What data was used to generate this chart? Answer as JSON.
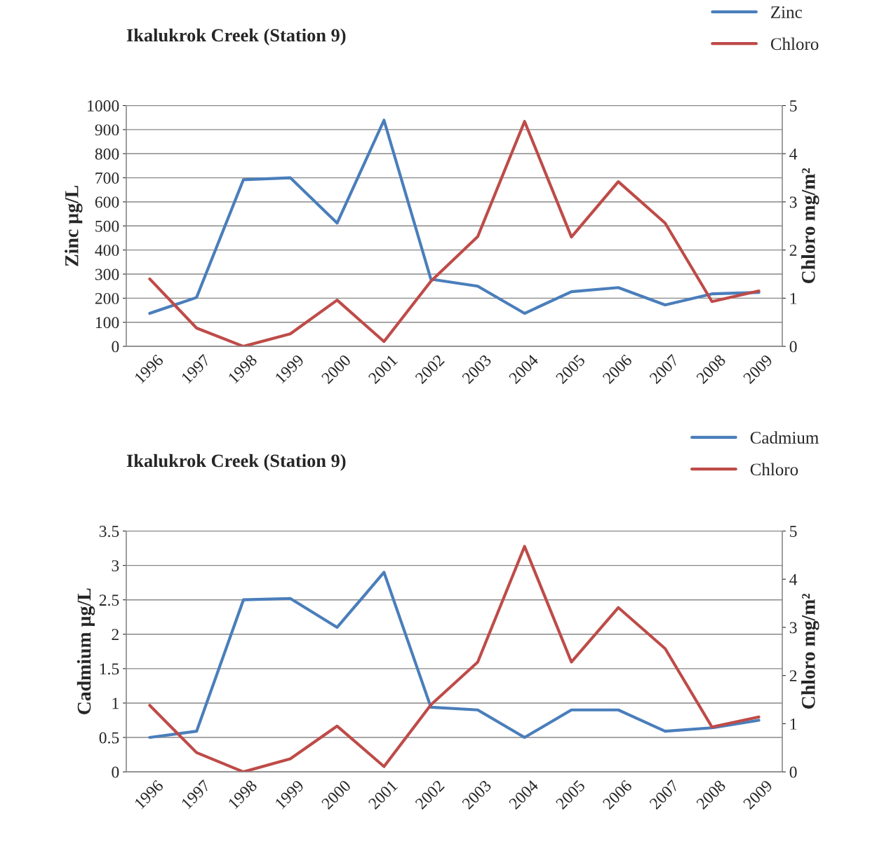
{
  "chart_data": [
    {
      "type": "line",
      "title": "Ikalukrok Creek (Station 9)",
      "ylabel": "Zinc µg/L",
      "y2label": "Chloro mg/m²",
      "categories": [
        "1996",
        "1997",
        "1998",
        "1999",
        "2000",
        "2001",
        "2002",
        "2003",
        "2004",
        "2005",
        "2006",
        "2007",
        "2008",
        "2009"
      ],
      "series": [
        {
          "name": "Zinc",
          "color": "#4a7ebb",
          "values": [
            137,
            203,
            692,
            700,
            512,
            939,
            279,
            250,
            137,
            227,
            244,
            172,
            218,
            224
          ]
        },
        {
          "name": "Chloro",
          "color": "#be4b48",
          "axis": "y2",
          "values": [
            1.4,
            0.38,
            0.0,
            0.26,
            0.96,
            0.1,
            1.35,
            2.28,
            4.67,
            2.27,
            3.42,
            2.56,
            0.93,
            1.15
          ]
        }
      ],
      "ylim": [
        0,
        1000
      ],
      "yticks": [
        0,
        100,
        200,
        300,
        400,
        500,
        600,
        700,
        800,
        900,
        1000
      ],
      "y2lim": [
        0,
        5
      ],
      "y2ticks": [
        0,
        1,
        2,
        3,
        4,
        5
      ],
      "grid": "y",
      "legend": "top right",
      "marker": "none",
      "line_style": "solid"
    },
    {
      "type": "line",
      "title": "Ikalukrok Creek (Station 9)",
      "ylabel": "Cadmium µg/L",
      "y2label": "Chloro mg/m²",
      "categories": [
        "1996",
        "1997",
        "1998",
        "1999",
        "2000",
        "2001",
        "2002",
        "2003",
        "2004",
        "2005",
        "2006",
        "2007",
        "2008",
        "2009"
      ],
      "series": [
        {
          "name": "Cadmium",
          "color": "#4a7ebb",
          "values": [
            0.5,
            0.59,
            2.5,
            2.52,
            2.1,
            2.9,
            0.94,
            0.9,
            0.5,
            0.9,
            0.9,
            0.59,
            0.64,
            0.75
          ]
        },
        {
          "name": "Chloro",
          "color": "#be4b48",
          "axis": "y2",
          "values": [
            1.38,
            0.4,
            0.0,
            0.27,
            0.95,
            0.11,
            1.39,
            2.28,
            4.68,
            2.28,
            3.41,
            2.56,
            0.93,
            1.14
          ]
        }
      ],
      "ylim": [
        0,
        3.5
      ],
      "yticks": [
        0,
        {
          "value": 0.5,
          "label": "0.5"
        },
        1,
        {
          "value": 1.5,
          "label": "1.5"
        },
        2,
        {
          "value": 2.5,
          "label": "2.5"
        },
        3,
        {
          "value": 3.5,
          "label": "3.5"
        }
      ],
      "y2lim": [
        0,
        5
      ],
      "y2ticks": [
        0,
        1,
        2,
        3,
        4,
        5
      ],
      "grid": "y",
      "legend": "top right",
      "marker": "none",
      "line_style": "solid"
    }
  ]
}
